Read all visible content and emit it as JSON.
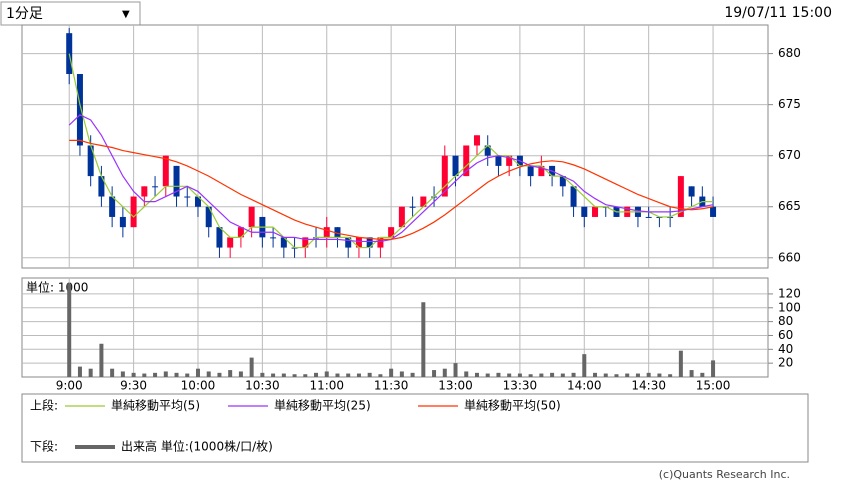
{
  "dropdown": {
    "label": "1分足",
    "arrow": "▼"
  },
  "timestamp": "19/07/11 15:00",
  "chart_data": [
    {
      "type": "candlestick",
      "x": [
        0,
        5,
        10,
        15,
        20,
        25,
        30,
        35,
        40,
        45,
        50,
        55,
        60,
        65,
        70,
        75,
        80,
        85,
        90,
        95,
        100,
        105,
        110,
        115,
        120,
        125,
        130,
        135,
        140,
        145,
        150,
        155,
        160,
        165,
        170,
        175,
        180,
        185,
        190,
        195,
        200,
        205,
        210,
        215,
        220,
        225,
        230,
        235,
        240,
        245,
        250,
        255,
        260,
        265,
        270,
        275,
        280,
        285,
        290,
        295,
        300
      ],
      "open": [
        682,
        678,
        671,
        668,
        666,
        664,
        663,
        666,
        667,
        667,
        669,
        666,
        666,
        665,
        663,
        661,
        662,
        663,
        664,
        662,
        662,
        661,
        661,
        662,
        662,
        663,
        662,
        661,
        662,
        661,
        662,
        663,
        665,
        665,
        666,
        666,
        670,
        668,
        671,
        671,
        670,
        669,
        670,
        669,
        668,
        669,
        668,
        667,
        665,
        664,
        665,
        665,
        664,
        665,
        664,
        664,
        664,
        664,
        667,
        666,
        665
      ],
      "high": [
        682.5,
        678,
        672,
        669,
        667,
        665,
        666,
        667,
        668,
        670,
        669,
        667,
        666,
        665,
        663,
        662,
        663,
        665,
        664,
        663,
        662,
        662,
        662,
        663,
        664,
        663,
        662,
        662,
        662,
        662,
        663,
        665,
        666,
        666,
        667,
        671,
        670,
        671,
        672,
        672,
        670,
        670,
        670,
        669,
        670,
        669,
        668,
        667,
        665,
        665,
        665,
        665,
        665,
        665,
        665,
        664,
        665,
        668,
        667,
        667,
        666
      ],
      "low": [
        677,
        670,
        667,
        665,
        663,
        662,
        663,
        665,
        666,
        666,
        665,
        665,
        664,
        662,
        660,
        660,
        661,
        662,
        661,
        661,
        660,
        660,
        660,
        661,
        661,
        661,
        660,
        660,
        660,
        660,
        662,
        663,
        664,
        665,
        665,
        666,
        667,
        668,
        670,
        669,
        668,
        668,
        668,
        667,
        668,
        667,
        666,
        664,
        663,
        664,
        664,
        664,
        664,
        663,
        664,
        663,
        663,
        664,
        665,
        665,
        664
      ],
      "close": [
        678,
        671,
        668,
        666,
        664,
        663,
        666,
        667,
        667,
        670,
        666,
        666,
        665,
        663,
        661,
        662,
        663,
        665,
        662,
        662,
        661,
        661,
        662,
        662,
        663,
        662,
        661,
        662,
        661,
        662,
        663,
        665,
        665,
        666,
        666,
        670,
        668,
        671,
        672,
        670,
        669,
        670,
        669,
        668,
        669,
        668,
        667,
        665,
        664,
        665,
        665,
        664,
        665,
        664,
        664,
        664,
        664,
        668,
        666,
        665,
        664
      ],
      "up_color": "#ff0033",
      "down_color": "#003399",
      "series": [
        {
          "name": "単純移動平均(5)",
          "color": "#99cc33",
          "values": [
            680,
            675,
            671,
            668,
            666,
            665,
            664,
            665,
            666,
            667,
            667,
            667,
            666,
            665,
            663,
            662,
            662,
            663,
            663,
            663,
            662,
            661,
            661,
            662,
            662,
            662,
            662,
            661,
            661,
            662,
            662,
            663,
            664,
            665,
            666,
            667,
            668,
            669,
            670,
            671,
            670,
            670,
            669,
            669,
            669,
            668,
            668,
            667,
            666,
            665,
            665,
            664.5,
            664.5,
            664.5,
            664.5,
            664,
            664,
            664.5,
            665,
            665.5,
            665.5
          ]
        },
        {
          "name": "単純移動平均(25)",
          "color": "#9933ff",
          "values": [
            673,
            674,
            673.5,
            672,
            670,
            668,
            666.5,
            665.5,
            665.5,
            666,
            666.5,
            667,
            666.5,
            665.5,
            664.5,
            663.5,
            663,
            662.5,
            662.5,
            662.5,
            662,
            662,
            661.8,
            661.8,
            661.8,
            661.8,
            661.7,
            661.6,
            661.6,
            661.6,
            661.8,
            662.5,
            663.5,
            664.5,
            665.5,
            666.5,
            667.5,
            668.5,
            669.3,
            669.8,
            670,
            669.8,
            669.5,
            669,
            668.8,
            668.5,
            668,
            667.5,
            666.5,
            665.8,
            665.2,
            665,
            664.8,
            664.6,
            664.5,
            664.5,
            664.5,
            664.6,
            664.8,
            665,
            665.2
          ]
        },
        {
          "name": "単純移動平均(50)",
          "color": "#ff3300",
          "values": [
            671.5,
            671.5,
            671.2,
            671,
            670.8,
            670.5,
            670.3,
            670.1,
            669.9,
            669.7,
            669.4,
            669,
            668.5,
            668,
            667.4,
            666.8,
            666.2,
            665.7,
            665.2,
            664.7,
            664.2,
            663.7,
            663.3,
            663,
            662.7,
            662.4,
            662.2,
            662,
            661.9,
            661.8,
            661.8,
            662,
            662.4,
            662.9,
            663.5,
            664.2,
            665,
            665.8,
            666.6,
            667.4,
            668,
            668.5,
            668.9,
            669.2,
            669.4,
            669.5,
            669.4,
            669.1,
            668.7,
            668.2,
            667.7,
            667.2,
            666.7,
            666.2,
            665.8,
            665.4,
            665,
            664.8,
            664.7,
            664.8,
            665
          ]
        }
      ],
      "ylim": [
        659,
        682.8
      ],
      "yticks": [
        660,
        665,
        670,
        675,
        680
      ],
      "grid": true
    },
    {
      "type": "bar",
      "y_label": "単位: 1000",
      "series": [
        {
          "name": "出来高 単位:(1000株/口/枚)",
          "color": "#666666",
          "values": [
            135,
            15,
            12,
            48,
            12,
            8,
            6,
            5,
            6,
            8,
            6,
            5,
            12,
            8,
            6,
            10,
            8,
            28,
            6,
            5,
            5,
            4,
            4,
            6,
            8,
            5,
            5,
            5,
            6,
            4,
            12,
            8,
            6,
            108,
            10,
            12,
            20,
            8,
            6,
            5,
            6,
            5,
            5,
            4,
            5,
            6,
            5,
            6,
            33,
            6,
            5,
            4,
            5,
            5,
            6,
            5,
            4,
            38,
            10,
            6,
            24
          ]
        }
      ],
      "ylim": [
        0,
        143
      ],
      "yticks": [
        20,
        40,
        60,
        80,
        100,
        120
      ],
      "xlim": [
        -22,
        325.6
      ],
      "xticks": [
        {
          "value": 0,
          "label": "9:00"
        },
        {
          "value": 30,
          "label": "9:30"
        },
        {
          "value": 60,
          "label": "10:00"
        },
        {
          "value": 90,
          "label": "10:30"
        },
        {
          "value": 120,
          "label": "11:00"
        },
        {
          "value": 150,
          "label": "11:30"
        },
        {
          "value": 180,
          "label": "13:00"
        },
        {
          "value": 210,
          "label": "13:30"
        },
        {
          "value": 240,
          "label": "14:00"
        },
        {
          "value": 270,
          "label": "14:30"
        },
        {
          "value": 300,
          "label": "15:00"
        }
      ],
      "grid": true
    }
  ],
  "legend": {
    "upper_label": "上段:",
    "lower_label": "下段:"
  },
  "credit": "(c)Quants Research Inc."
}
